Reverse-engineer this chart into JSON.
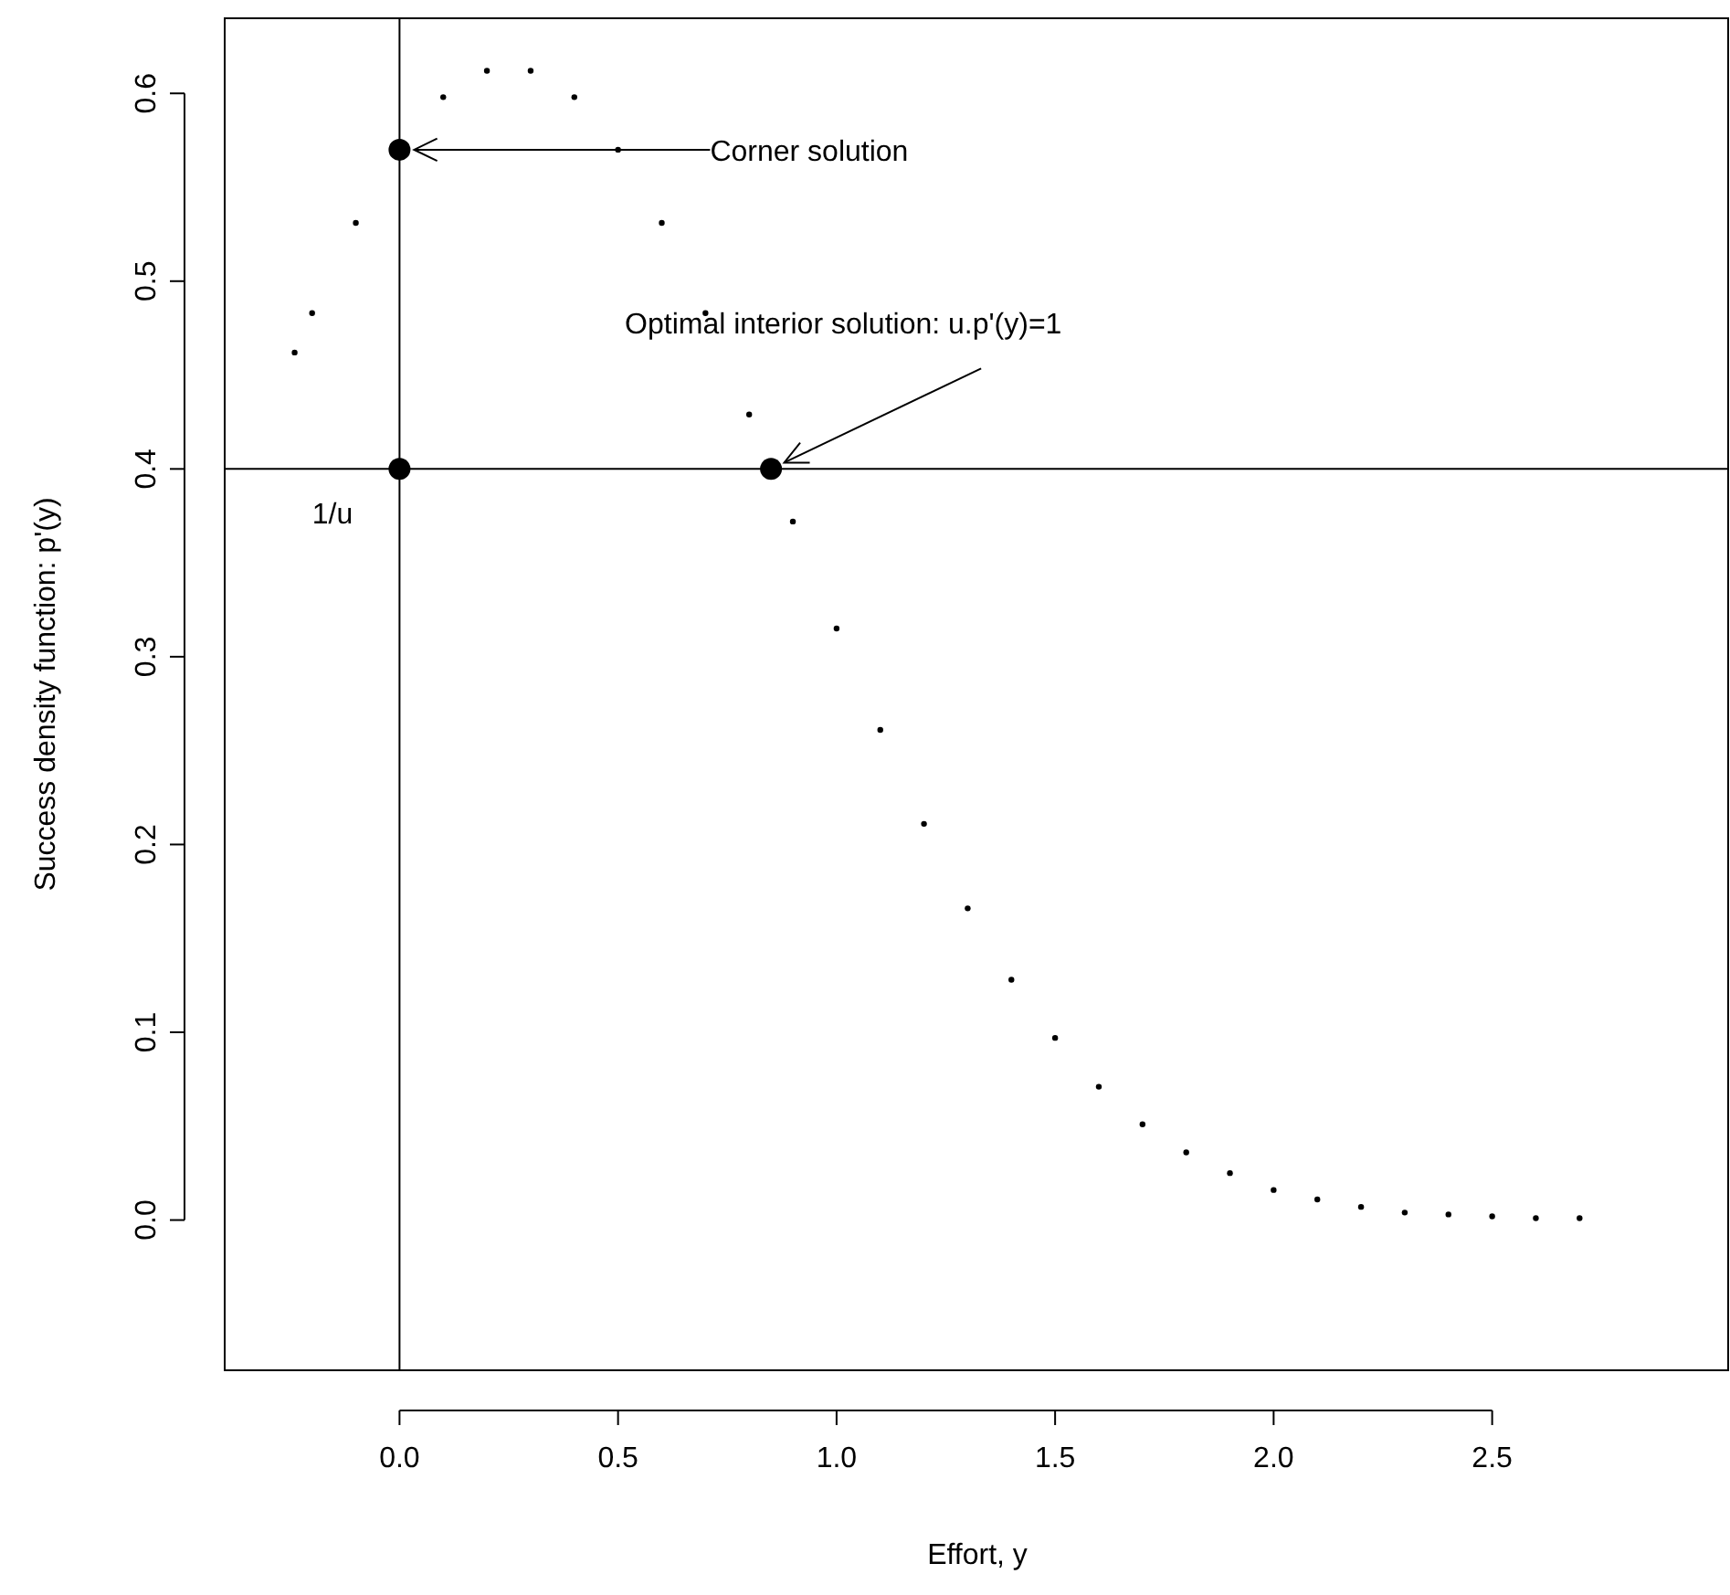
{
  "chart_data": {
    "type": "scatter",
    "xlabel": "Effort, y",
    "ylabel": "Success density function: p'(y)",
    "xlim": [
      -0.4,
      3.04
    ],
    "ylim": [
      -0.08,
      0.64
    ],
    "xticks": [
      {
        "value": 0,
        "label": "0.0"
      },
      {
        "value": 0.5,
        "label": "0.5"
      },
      {
        "value": 1,
        "label": "1.0"
      },
      {
        "value": 1.5,
        "label": "1.5"
      },
      {
        "value": 2,
        "label": "2.0"
      },
      {
        "value": 2.5,
        "label": "2.5"
      }
    ],
    "yticks": [
      {
        "value": 0,
        "label": "0.0"
      },
      {
        "value": 0.1,
        "label": "0.1"
      },
      {
        "value": 0.2,
        "label": "0.2"
      },
      {
        "value": 0.3,
        "label": "0.3"
      },
      {
        "value": 0.4,
        "label": "0.4"
      },
      {
        "value": 0.5,
        "label": "0.5"
      },
      {
        "value": 0.6,
        "label": "0.6"
      }
    ],
    "series": [
      {
        "color": "#000000",
        "marker": "circle",
        "x": [
          -0.24,
          -0.2,
          -0.1,
          0.1,
          0.2,
          0.3,
          0.4,
          0.5,
          0.6,
          0.7,
          0.8,
          0.9,
          1,
          1.1,
          1.2,
          1.3,
          1.4,
          1.5,
          1.6,
          1.7,
          1.8,
          1.9,
          2,
          2.1,
          2.2,
          2.3,
          2.4,
          2.5,
          2.6,
          2.7
        ],
        "values": [
          0.462,
          0.483,
          0.531,
          0.598,
          0.612,
          0.612,
          0.598,
          0.57,
          0.531,
          0.483,
          0.429,
          0.372,
          0.315,
          0.261,
          0.211,
          0.166,
          0.128,
          0.097,
          0.071,
          0.051,
          0.036,
          0.025,
          0.016,
          0.011,
          0.007,
          0.004,
          0.003,
          0.002,
          0.001,
          0.001
        ]
      },
      {
        "color": "#000000",
        "marker": "circle",
        "x": [
          0,
          0,
          0.85
        ],
        "values": [
          0.57,
          0.4,
          0.4
        ]
      }
    ],
    "ref_lines": [
      {
        "axis": "x",
        "value": 0
      },
      {
        "axis": "y",
        "value": 0.4,
        "label": "1/u"
      }
    ],
    "annotations": [
      {
        "text": "Corner solution",
        "x": 0,
        "y": 0.57
      },
      {
        "text": "Optimal interior solution: u.p'(y)=1",
        "x": 0.85,
        "y": 0.4
      }
    ]
  }
}
